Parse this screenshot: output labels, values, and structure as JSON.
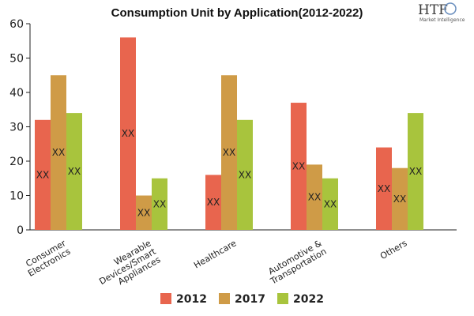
{
  "chart_data": {
    "type": "bar",
    "title": "Consumption Unit by  Application(2012-2022)",
    "categories": [
      [
        "Consumer",
        "Electronics"
      ],
      [
        "Wearable",
        "Devices/Smart",
        "Appliances"
      ],
      [
        "Healthcare"
      ],
      [
        "Automotive &",
        "Transportation"
      ],
      [
        "Others"
      ]
    ],
    "series": [
      {
        "name": "2012",
        "color": "#e8654e",
        "values": [
          32,
          56,
          16,
          37,
          24
        ]
      },
      {
        "name": "2017",
        "color": "#cf9b47",
        "values": [
          45,
          10,
          45,
          19,
          18
        ]
      },
      {
        "name": "2022",
        "color": "#a8c43d",
        "values": [
          34,
          15,
          32,
          15,
          34
        ]
      }
    ],
    "data_label": "XX",
    "ylim": [
      0,
      60
    ],
    "yticks": [
      0,
      10,
      20,
      30,
      40,
      50,
      60
    ],
    "grid": false,
    "legend_position": "bottom"
  },
  "logo": {
    "main": "HTF",
    "sub": "Market Intelligence"
  }
}
